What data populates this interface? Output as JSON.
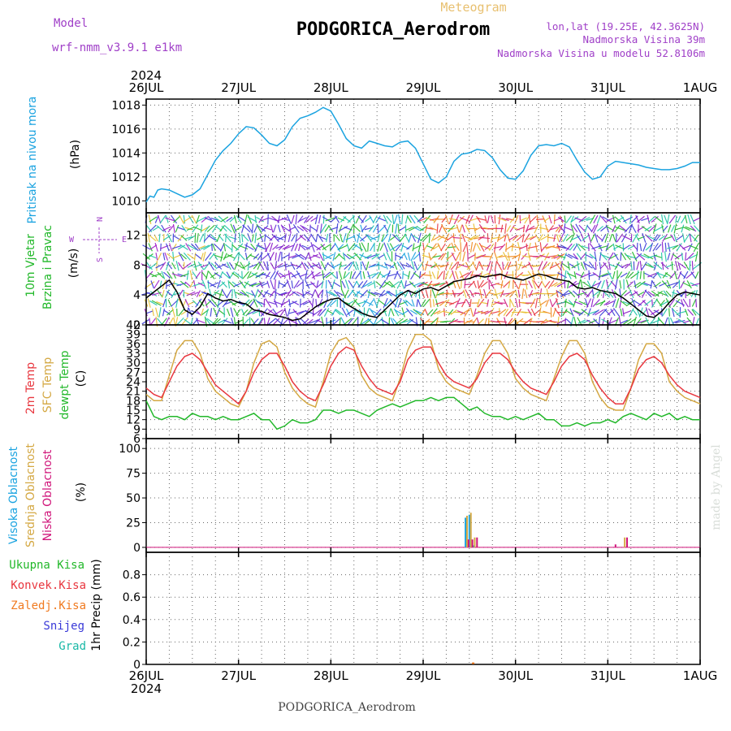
{
  "header": {
    "model_label": "Model",
    "model_name": "wrf-nmm_v3.9.1 e1km",
    "chart_kind": "Meteogram",
    "station": "PODGORICA_Aerodrom",
    "lonlat": "lon,lat (19.25E, 42.3625N)",
    "elevation": "Nadmorska Visina 39m",
    "model_elevation": "Nadmorska Visina u modelu 52.8106m",
    "footer_station": "PODGORICA_Aerodrom",
    "credit": "made by Angel"
  },
  "colors": {
    "pressure": "#1aa3e0",
    "wind_speed": "#000000",
    "temp2m": "#e8373f",
    "sfc_temp": "#d4a843",
    "dewpt": "#22b82a",
    "cloud_high": "#1aa3e0",
    "cloud_mid": "#d4a843",
    "cloud_low": "#d0157a",
    "rain_total": "#22b82a",
    "rain_conv": "#e8373f",
    "rain_frz": "#f07a20",
    "snow": "#3a3ad8",
    "hail": "#19b8a6",
    "grid": "#666666",
    "model_text": "#a040c8"
  },
  "time_axis": {
    "year": "2024",
    "labels": [
      "26JUL",
      "27JUL",
      "28JUL",
      "29JUL",
      "30JUL",
      "31JUL",
      "1AUG"
    ],
    "hours_total": 144
  },
  "wind_legend": {
    "n": "N",
    "s": "S",
    "e": "E",
    "w": "W"
  },
  "chart_data": [
    {
      "type": "line",
      "id": "pressure",
      "ylabel_lines": [
        "Pritisak na nivou mora"
      ],
      "unit": "(hPa)",
      "ylim": [
        1009,
        1018.5
      ],
      "yticks": [
        1010,
        1012,
        1014,
        1016,
        1018
      ],
      "grid": true,
      "series": [
        {
          "x": [
            0,
            1,
            2,
            3,
            4,
            6,
            8,
            10,
            12,
            14,
            16,
            18,
            20,
            22,
            24,
            26,
            28,
            30,
            32,
            34,
            36,
            38,
            40,
            42,
            44,
            46,
            48,
            50,
            52,
            54,
            56,
            58,
            60,
            62,
            64,
            66,
            68,
            70,
            72,
            74,
            76,
            78,
            80,
            82,
            84,
            86,
            88,
            90,
            92,
            94,
            96,
            98,
            100,
            102,
            104,
            106,
            108,
            110,
            112,
            114,
            116,
            118,
            120,
            122,
            124,
            126,
            128,
            130,
            132,
            134,
            136,
            138,
            140,
            142,
            144
          ],
          "values": [
            1009.9,
            1010.4,
            1010.3,
            1010.9,
            1011.0,
            1010.9,
            1010.6,
            1010.3,
            1010.5,
            1011.0,
            1012.2,
            1013.4,
            1014.2,
            1014.8,
            1015.6,
            1016.2,
            1016.1,
            1015.5,
            1014.8,
            1014.6,
            1015.1,
            1016.2,
            1016.9,
            1017.1,
            1017.4,
            1017.8,
            1017.5,
            1016.4,
            1015.2,
            1014.6,
            1014.4,
            1015.0,
            1014.8,
            1014.6,
            1014.5,
            1014.9,
            1015.0,
            1014.4,
            1013.1,
            1011.8,
            1011.5,
            1012.0,
            1013.3,
            1013.9,
            1014.0,
            1014.3,
            1014.2,
            1013.6,
            1012.6,
            1011.9,
            1011.8,
            1012.5,
            1013.8,
            1014.6,
            1014.7,
            1014.6,
            1014.8,
            1014.5,
            1013.4,
            1012.4,
            1011.8,
            1012.0,
            1012.9,
            1013.3,
            1013.2,
            1013.1,
            1013.0,
            1012.8,
            1012.7,
            1012.6,
            1012.6,
            1012.7,
            1012.9,
            1013.2,
            1013.2
          ]
        }
      ]
    },
    {
      "type": "line",
      "id": "wind",
      "ylabel_lines": [
        "10m Vjetar",
        "Brzina i Pravac"
      ],
      "unit": "(m/s)",
      "ylim": [
        0,
        15
      ],
      "yticks": [
        0,
        4,
        8,
        12
      ],
      "grid": true,
      "arrow_bands": [
        {
          "start": 0,
          "end": 16,
          "colors": [
            "#1fc4a8",
            "#3a3ad8",
            "#22b82a",
            "#e8c030",
            "#a020c8"
          ]
        },
        {
          "start": 16,
          "end": 30,
          "colors": [
            "#1fc4a8",
            "#22b82a",
            "#3a3ad8"
          ]
        },
        {
          "start": 30,
          "end": 46,
          "colors": [
            "#8a1ac8",
            "#3a3ad8",
            "#6a2ad8"
          ]
        },
        {
          "start": 46,
          "end": 72,
          "colors": [
            "#1fc4a8",
            "#22b82a",
            "#3a3ad8",
            "#1aa3e0"
          ]
        },
        {
          "start": 72,
          "end": 80,
          "colors": [
            "#f08a20",
            "#e8373f",
            "#e8c030",
            "#22b82a"
          ]
        },
        {
          "start": 80,
          "end": 108,
          "colors": [
            "#e8373f",
            "#f08a20",
            "#e8c030",
            "#d02080"
          ]
        },
        {
          "start": 108,
          "end": 144,
          "colors": [
            "#1fc4a8",
            "#3a3ad8",
            "#22b82a",
            "#8a1ac8"
          ]
        }
      ],
      "series": [
        {
          "x": [
            0,
            2,
            4,
            6,
            8,
            10,
            12,
            14,
            16,
            18,
            20,
            22,
            24,
            26,
            28,
            30,
            32,
            34,
            36,
            38,
            40,
            42,
            44,
            46,
            48,
            50,
            52,
            54,
            56,
            58,
            60,
            62,
            64,
            66,
            68,
            70,
            72,
            74,
            76,
            78,
            80,
            82,
            84,
            86,
            88,
            90,
            92,
            94,
            96,
            98,
            100,
            102,
            104,
            106,
            108,
            110,
            112,
            114,
            116,
            118,
            120,
            122,
            124,
            126,
            128,
            130,
            132,
            134,
            136,
            138,
            140,
            142,
            144
          ],
          "values": [
            3.6,
            4.4,
            5.2,
            6.0,
            4.4,
            2.0,
            1.4,
            2.4,
            4.2,
            3.6,
            3.2,
            3.4,
            3.0,
            2.8,
            2.0,
            1.8,
            1.4,
            1.2,
            1.0,
            0.6,
            0.8,
            1.6,
            2.4,
            3.0,
            3.4,
            3.6,
            2.8,
            2.2,
            1.6,
            1.2,
            1.0,
            2.0,
            3.0,
            4.0,
            4.6,
            4.2,
            4.8,
            5.0,
            4.6,
            5.2,
            5.8,
            6.0,
            6.2,
            6.6,
            6.4,
            6.6,
            6.8,
            6.4,
            6.2,
            6.0,
            6.4,
            6.8,
            6.6,
            6.2,
            6.0,
            5.8,
            5.0,
            4.8,
            5.0,
            4.6,
            4.4,
            4.2,
            3.6,
            2.8,
            2.0,
            1.2,
            1.0,
            1.8,
            3.0,
            4.0,
            4.4,
            4.2,
            4.0
          ]
        }
      ]
    },
    {
      "type": "line",
      "id": "temperature",
      "ylabel_lines": [
        "2m Temp",
        "SFC Temp",
        "dewpt Temp"
      ],
      "unit": "(C)",
      "ylim": [
        6,
        42
      ],
      "yticks": [
        6,
        9,
        12,
        15,
        18,
        21,
        24,
        27,
        30,
        33,
        36,
        39,
        42
      ],
      "grid": true,
      "series": [
        {
          "id": "temp2m",
          "x": [
            0,
            2,
            4,
            6,
            8,
            10,
            12,
            14,
            16,
            18,
            20,
            22,
            24,
            26,
            28,
            30,
            32,
            34,
            36,
            38,
            40,
            42,
            44,
            46,
            48,
            50,
            52,
            54,
            56,
            58,
            60,
            62,
            64,
            66,
            68,
            70,
            72,
            74,
            76,
            78,
            80,
            82,
            84,
            86,
            88,
            90,
            92,
            94,
            96,
            98,
            100,
            102,
            104,
            106,
            108,
            110,
            112,
            114,
            116,
            118,
            120,
            122,
            124,
            126,
            128,
            130,
            132,
            134,
            136,
            138,
            140,
            142,
            144
          ],
          "values": [
            22,
            20,
            19,
            24,
            29,
            32,
            33,
            31,
            27,
            23,
            21,
            19,
            17,
            21,
            27,
            31,
            33,
            33,
            29,
            24,
            21,
            19,
            18,
            23,
            29,
            33,
            35,
            34,
            29,
            25,
            22,
            21,
            20,
            24,
            31,
            34,
            35,
            35,
            30,
            26,
            24,
            23,
            22,
            25,
            30,
            33,
            33,
            31,
            27,
            24,
            22,
            21,
            20,
            24,
            29,
            32,
            33,
            31,
            26,
            22,
            19,
            17,
            17,
            22,
            28,
            31,
            32,
            30,
            26,
            23,
            21,
            20,
            19
          ]
        },
        {
          "id": "sfc_temp",
          "x": [
            0,
            2,
            4,
            6,
            8,
            10,
            12,
            14,
            16,
            18,
            20,
            22,
            24,
            26,
            28,
            30,
            32,
            34,
            36,
            38,
            40,
            42,
            44,
            46,
            48,
            50,
            52,
            54,
            56,
            58,
            60,
            62,
            64,
            66,
            68,
            70,
            72,
            74,
            76,
            78,
            80,
            82,
            84,
            86,
            88,
            90,
            92,
            94,
            96,
            98,
            100,
            102,
            104,
            106,
            108,
            110,
            112,
            114,
            116,
            118,
            120,
            122,
            124,
            126,
            128,
            130,
            132,
            134,
            136,
            138,
            140,
            142,
            144
          ],
          "values": [
            20,
            18,
            18,
            26,
            34,
            37,
            37,
            33,
            25,
            21,
            19,
            17,
            16,
            21,
            30,
            36,
            37,
            35,
            27,
            22,
            19,
            17,
            16,
            24,
            33,
            37,
            38,
            35,
            26,
            22,
            20,
            19,
            18,
            25,
            34,
            39,
            39,
            37,
            28,
            24,
            22,
            21,
            20,
            26,
            33,
            37,
            37,
            33,
            25,
            22,
            20,
            19,
            18,
            25,
            32,
            37,
            37,
            33,
            24,
            19,
            16,
            15,
            15,
            22,
            31,
            36,
            36,
            33,
            24,
            21,
            19,
            18,
            17
          ]
        },
        {
          "id": "dewpt",
          "x": [
            0,
            2,
            4,
            6,
            8,
            10,
            12,
            14,
            16,
            18,
            20,
            22,
            24,
            26,
            28,
            30,
            32,
            34,
            36,
            38,
            40,
            42,
            44,
            46,
            48,
            50,
            52,
            54,
            56,
            58,
            60,
            62,
            64,
            66,
            68,
            70,
            72,
            74,
            76,
            78,
            80,
            82,
            84,
            86,
            88,
            90,
            92,
            94,
            96,
            98,
            100,
            102,
            104,
            106,
            108,
            110,
            112,
            114,
            116,
            118,
            120,
            122,
            124,
            126,
            128,
            130,
            132,
            134,
            136,
            138,
            140,
            142,
            144
          ],
          "values": [
            18,
            13,
            12,
            13,
            13,
            12,
            14,
            13,
            13,
            12,
            13,
            12,
            12,
            13,
            14,
            12,
            12,
            9,
            10,
            12,
            11,
            11,
            12,
            15,
            15,
            14,
            15,
            15,
            14,
            13,
            15,
            16,
            17,
            16,
            17,
            18,
            18,
            19,
            18,
            19,
            19,
            17,
            15,
            16,
            14,
            13,
            13,
            12,
            13,
            12,
            13,
            14,
            12,
            12,
            10,
            10,
            11,
            10,
            11,
            11,
            12,
            11,
            13,
            14,
            13,
            12,
            14,
            13,
            14,
            12,
            13,
            12,
            12
          ]
        }
      ]
    },
    {
      "type": "bar",
      "id": "clouds",
      "ylabel_lines": [
        "Visoka Oblacnost",
        "Srednja Oblacnost",
        "Niska Oblacnost"
      ],
      "unit": "(%)",
      "ylim": [
        -5,
        110
      ],
      "yticks": [
        0,
        25,
        50,
        75,
        100
      ],
      "grid": true,
      "series": [
        {
          "id": "high",
          "x": [
            83,
            84,
            85
          ],
          "values": [
            30,
            33,
            2
          ]
        },
        {
          "id": "mid",
          "x": [
            83.4,
            84.4,
            85.4,
            124.4
          ],
          "values": [
            32,
            35,
            10,
            10
          ]
        },
        {
          "id": "low",
          "x": [
            83.8,
            84.8,
            86,
            122,
            125
          ],
          "values": [
            8,
            8,
            10,
            3,
            10
          ]
        }
      ]
    },
    {
      "type": "bar",
      "id": "precip",
      "legend": [
        "Ukupna Kisa",
        "Konvek.Kisa",
        "Zaledj.Kisa",
        "Snijeg",
        "Grad"
      ],
      "unit": "1hr Precip (mm)",
      "ylim": [
        0,
        1.0
      ],
      "yticks": [
        0,
        0.2,
        0.4,
        0.6,
        0.8
      ],
      "ytick_labels": [
        "0",
        "0.2",
        "0.4",
        "0.6",
        "0.8"
      ],
      "grid": true,
      "series": [
        {
          "id": "conv",
          "x": [
            85
          ],
          "values": [
            0.01
          ]
        }
      ]
    }
  ]
}
